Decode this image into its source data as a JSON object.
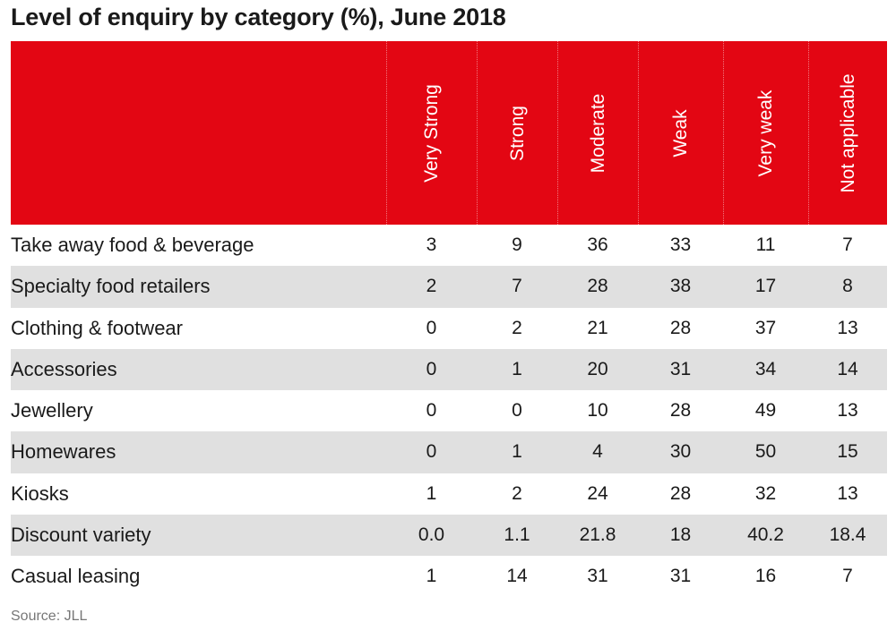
{
  "title": "Level of enquiry by category (%), June 2018",
  "source": "Source: JLL",
  "colors": {
    "header_bg": "#e30613",
    "row_shade": "#e0e0e0"
  },
  "chart_data": {
    "type": "table",
    "title": "Level of enquiry by category (%), June 2018",
    "columns": [
      "Very Strong",
      "Strong",
      "Moderate",
      "Weak",
      "Very weak",
      "Not applicable"
    ],
    "rows": [
      {
        "category": "Take away food & beverage",
        "values": [
          "3",
          "9",
          "36",
          "33",
          "11",
          "7"
        ]
      },
      {
        "category": "Specialty food retailers",
        "values": [
          "2",
          "7",
          "28",
          "38",
          "17",
          "8"
        ]
      },
      {
        "category": "Clothing & footwear",
        "values": [
          "0",
          "2",
          "21",
          "28",
          "37",
          "13"
        ]
      },
      {
        "category": "Accessories",
        "values": [
          "0",
          "1",
          "20",
          "31",
          "34",
          "14"
        ]
      },
      {
        "category": "Jewellery",
        "values": [
          "0",
          "0",
          "10",
          "28",
          "49",
          "13"
        ]
      },
      {
        "category": "Homewares",
        "values": [
          "0",
          "1",
          "4",
          "30",
          "50",
          "15"
        ]
      },
      {
        "category": "Kiosks",
        "values": [
          "1",
          "2",
          "24",
          "28",
          "32",
          "13"
        ]
      },
      {
        "category": "Discount variety",
        "values": [
          "0.0",
          "1.1",
          "21.8",
          "18",
          "40.2",
          "18.4"
        ]
      },
      {
        "category": "Casual leasing",
        "values": [
          "1",
          "14",
          "31",
          "31",
          "16",
          "7"
        ]
      }
    ]
  }
}
